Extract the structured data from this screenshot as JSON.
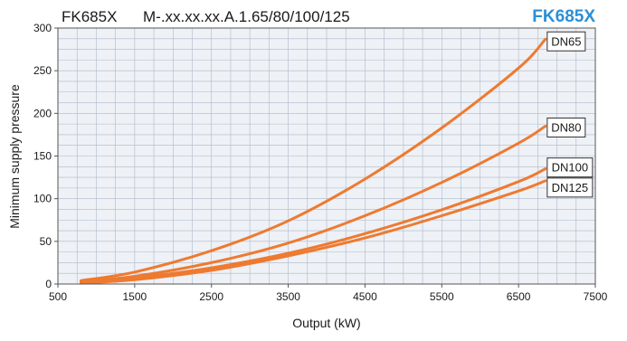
{
  "header": {
    "model": "FK685X",
    "variant": "M-.xx.xx.xx.A.1.65/80/100/125",
    "brand": "FK685X",
    "brand_color": "#2a8fd6"
  },
  "chart_data": {
    "type": "line",
    "title": "",
    "xlabel": "Output (kW)",
    "ylabel": "Minimum supply pressure",
    "xlim": [
      500,
      7500
    ],
    "ylim": [
      0,
      300
    ],
    "xticks": [
      500,
      1500,
      2500,
      3500,
      4500,
      5500,
      6500,
      7500
    ],
    "yticks": [
      0,
      50,
      100,
      150,
      200,
      250,
      300
    ],
    "grid": true,
    "line_color": "#ee7a30",
    "plot_background": "#eef1f6",
    "grid_color": "#aeb9c9",
    "series": [
      {
        "name": "DN65",
        "x": [
          800,
          1500,
          2500,
          3500,
          4500,
          5500,
          6500,
          6850
        ],
        "y": [
          4,
          14,
          39,
          74,
          123,
          183,
          253,
          287
        ]
      },
      {
        "name": "DN80",
        "x": [
          800,
          1500,
          2500,
          3500,
          4500,
          5500,
          6500,
          6850
        ],
        "y": [
          3,
          9,
          25,
          48,
          80,
          119,
          165,
          185
        ]
      },
      {
        "name": "DN100",
        "x": [
          800,
          1500,
          2500,
          3500,
          4500,
          5500,
          6500,
          6850
        ],
        "y": [
          2,
          7,
          19,
          36,
          59,
          87,
          120,
          135
        ]
      },
      {
        "name": "DN125",
        "x": [
          800,
          1500,
          2500,
          3500,
          4500,
          5500,
          6500,
          6850
        ],
        "y": [
          1,
          5,
          16,
          33,
          54,
          80,
          109,
          121
        ]
      }
    ]
  }
}
